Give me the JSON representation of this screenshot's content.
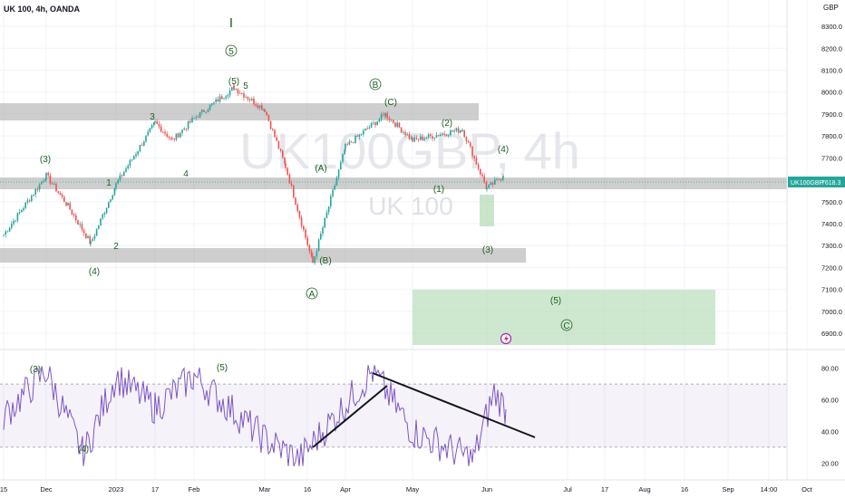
{
  "header": {
    "symbol_label": "UK 100, 4h, OANDA"
  },
  "watermark": {
    "big": "UK100GBP, 4h",
    "small": "UK 100"
  },
  "price_axis": {
    "currency": "GBP",
    "ticks": [
      "8300.0",
      "8200.0",
      "8100.0",
      "8000.0",
      "7900.0",
      "7800.0",
      "7700.0",
      "7600.0",
      "7500.0",
      "7400.0",
      "7300.0",
      "7200.0",
      "7100.0",
      "7000.0",
      "6900.0"
    ],
    "last_label": "UK100GBP",
    "last_price": "7618.3"
  },
  "rsi_axis": {
    "ticks": [
      "80.00",
      "60.00",
      "40.00",
      "20.00"
    ]
  },
  "time_axis": {
    "ticks": [
      "15",
      "Dec",
      "2023",
      "17",
      "Feb",
      "Mar",
      "16",
      "Apr",
      "May",
      "Jun",
      "Jul",
      "17",
      "Aug",
      "16",
      "Sep",
      "14:00",
      "Oct"
    ]
  },
  "colors": {
    "up": "#26a69a",
    "down": "#ef5350",
    "rsi": "#7e57c2",
    "zone_gray": "#9e9e9e",
    "zone_green": "#66bb6a",
    "wave_label": "#1b5e20"
  },
  "annotations": {
    "wave_I": "I",
    "wave_5_circle": "5",
    "w5_paren": "(5)",
    "w5_plain": "5",
    "w3_main": "3",
    "w4_main": "4",
    "w1_main": "1",
    "w2_main": "2",
    "w3_paren": "(3)",
    "w4_paren": "(4)",
    "wB_circle": "B",
    "wC_paren": "(C)",
    "wA_paren": "(A)",
    "wB_paren": "(B)",
    "wA_circle": "A",
    "w2_small": "(2)",
    "w4_small": "(4)",
    "w1_small": "(1)",
    "w3_small": "(3)",
    "target_5": "(5)",
    "target_C": "C",
    "rsi_w3": "(3)",
    "rsi_w4": "(4)",
    "rsi_w5": "(5)"
  },
  "chart_data": {
    "type": "line",
    "title": "UK 100, 4h, OANDA",
    "symbol": "UK100GBP",
    "last": 7618.3,
    "ylim": [
      6830,
      8420
    ],
    "legend": "none",
    "price_path": [
      {
        "x": "15",
        "y": 7350
      },
      {
        "x": "Dec",
        "y": 7620
      },
      {
        "x": "Dec",
        "y": 7480
      },
      {
        "x": "Dec",
        "y": 7310
      },
      {
        "x": "2023",
        "y": 7580
      },
      {
        "x": "17",
        "y": 7860
      },
      {
        "x": "Feb",
        "y": 7780
      },
      {
        "x": "Feb",
        "y": 7880
      },
      {
        "x": "Feb",
        "y": 8020
      },
      {
        "x": "Mar",
        "y": 7920
      },
      {
        "x": "Mar",
        "y": 7660
      },
      {
        "x": "16",
        "y": 7220
      },
      {
        "x": "Apr",
        "y": 7750
      },
      {
        "x": "Apr",
        "y": 7900
      },
      {
        "x": "May",
        "y": 7780
      },
      {
        "x": "May",
        "y": 7830
      },
      {
        "x": "Jun",
        "y": 7560
      },
      {
        "x": "Jun",
        "y": 7618
      }
    ],
    "rsi_series": {
      "levels": [
        70,
        30
      ],
      "path": [
        {
          "x": "15",
          "y": 50
        },
        {
          "x": "Dec",
          "y": 78
        },
        {
          "x": "Dec",
          "y": 25
        },
        {
          "x": "2023",
          "y": 75
        },
        {
          "x": "17",
          "y": 55
        },
        {
          "x": "Feb",
          "y": 75
        },
        {
          "x": "Mar",
          "y": 35
        },
        {
          "x": "16",
          "y": 22
        },
        {
          "x": "Apr",
          "y": 78
        },
        {
          "x": "May",
          "y": 40
        },
        {
          "x": "Jun",
          "y": 22
        },
        {
          "x": "Jun",
          "y": 65
        },
        {
          "x": "Jun",
          "y": 54
        }
      ]
    }
  }
}
